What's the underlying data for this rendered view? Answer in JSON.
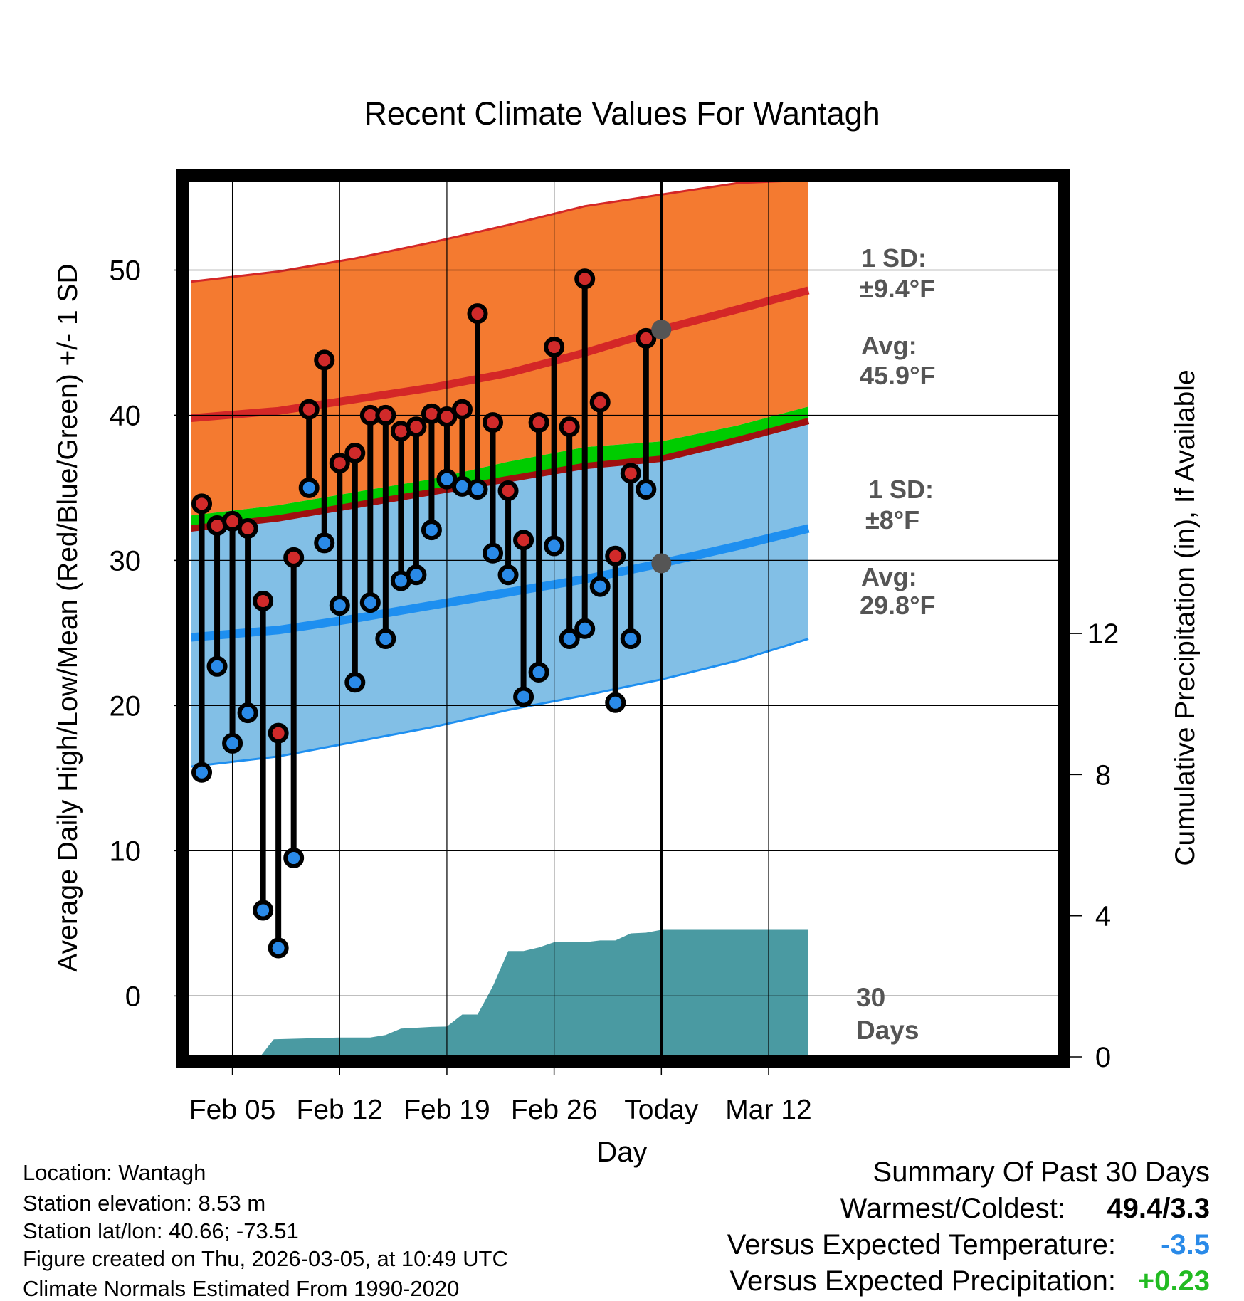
{
  "chart_data": {
    "type": "line",
    "title": "Recent Climate Values For Wantagh",
    "xlabel": "Day",
    "ylabel": "Average Daily High/Low/Mean (Red/Blue/Green) +/- 1 SD",
    "y2label": "Cumulative Precipitation (in), If Available",
    "x_range": [
      -3,
      54
    ],
    "ylim": [
      -4.2,
      56.2
    ],
    "y2lim": [
      0,
      24.85
    ],
    "y_ticks": [
      0,
      10,
      20,
      30,
      40,
      50
    ],
    "y2_ticks": [
      0,
      4,
      8,
      12
    ],
    "x_ticks": [
      {
        "day": 0,
        "label": "Feb 05"
      },
      {
        "day": 7,
        "label": "Feb 12"
      },
      {
        "day": 14,
        "label": "Feb 19"
      },
      {
        "day": 21,
        "label": "Feb 26"
      },
      {
        "day": 28,
        "label": "Today"
      },
      {
        "day": 35,
        "label": "Mar 12"
      }
    ],
    "today_day": 28,
    "today_label": "30 Days",
    "normals": {
      "days": [
        -2.7,
        3,
        8,
        13,
        18,
        23,
        28,
        33,
        37.6
      ],
      "high_plus_sd": [
        49.2,
        49.9,
        50.8,
        51.9,
        53.1,
        54.4,
        55.2,
        56.0,
        56.2
      ],
      "high_avg": [
        39.8,
        40.3,
        41.1,
        41.9,
        42.9,
        44.3,
        45.9,
        47.3,
        48.6
      ],
      "mean_upper": [
        33.1,
        33.8,
        34.7,
        35.6,
        36.8,
        37.8,
        38.2,
        39.3,
        40.6
      ],
      "mean_lower": [
        32.2,
        32.9,
        33.8,
        34.7,
        35.6,
        36.5,
        37.0,
        38.3,
        39.6
      ],
      "low_avg": [
        24.7,
        25.2,
        26.0,
        26.9,
        27.8,
        28.7,
        29.8,
        31.0,
        32.2
      ],
      "low_minus_sd": [
        15.8,
        16.5,
        17.5,
        18.5,
        19.7,
        20.7,
        21.8,
        23.1,
        24.6
      ]
    },
    "daily": {
      "days": [
        -2,
        -1,
        0,
        1,
        2,
        3,
        4,
        5,
        6,
        7,
        8,
        9,
        10,
        11,
        12,
        13,
        14,
        15,
        16,
        17,
        18,
        19,
        20,
        21,
        22,
        23,
        24,
        25,
        26,
        27
      ],
      "highs": [
        33.9,
        32.4,
        32.7,
        32.2,
        27.2,
        18.1,
        30.2,
        40.4,
        43.8,
        36.7,
        37.4,
        40.0,
        40.0,
        38.9,
        39.2,
        40.1,
        39.9,
        40.4,
        47.0,
        39.5,
        34.8,
        31.4,
        39.5,
        44.7,
        39.2,
        49.4,
        40.9,
        30.3,
        36.0,
        45.3
      ],
      "lows": [
        15.4,
        22.7,
        17.4,
        19.5,
        5.9,
        3.3,
        9.5,
        35.0,
        31.2,
        26.9,
        21.6,
        27.1,
        24.6,
        28.6,
        29.0,
        32.1,
        35.6,
        35.1,
        34.9,
        30.5,
        29.0,
        20.6,
        22.3,
        31.0,
        24.6,
        25.3,
        28.2,
        20.2,
        24.6,
        34.9
      ]
    },
    "precipitation": {
      "days": [
        -2.7,
        1.8,
        2.7,
        7,
        9,
        10,
        11,
        13,
        14,
        15,
        16,
        17,
        18,
        19,
        20,
        21,
        22,
        23,
        24,
        25,
        26,
        27,
        28,
        37.6
      ],
      "cumulative": [
        0,
        0,
        0.5,
        0.55,
        0.55,
        0.62,
        0.8,
        0.85,
        0.86,
        1.2,
        1.2,
        2.0,
        3.0,
        3.0,
        3.1,
        3.25,
        3.25,
        3.25,
        3.3,
        3.3,
        3.5,
        3.52,
        3.6,
        3.6
      ]
    },
    "annotations": {
      "high_sd_label": "1 SD:",
      "high_sd_value": "±9.4°F",
      "high_avg_label": "Avg:",
      "high_avg_value": "45.9°F",
      "high_avg_marker": 45.9,
      "low_sd_label": "1 SD:",
      "low_sd_value": "±8°F",
      "low_avg_label": "Avg:",
      "low_avg_value": "29.8°F",
      "low_avg_marker": 29.8
    },
    "colors": {
      "high_band": "#f47a30",
      "high_line": "#d42727",
      "low_band": "#82bfe6",
      "low_line": "#1e8ff0",
      "mean_band": "#00cc00",
      "mean_lower": "#a01010",
      "precip": "#4a9aa2",
      "high_marker": "#d02a2a",
      "low_marker": "#2a8ae8",
      "annotation": "#555555"
    }
  },
  "footer": {
    "location": "Location: Wantagh",
    "elevation": "Station elevation: 8.53 m",
    "latlon": "Station lat/lon: 40.66; -73.51",
    "created": "Figure created on Thu, 2026-03-05, at 10:49 UTC",
    "normals": "Climate Normals Estimated From 1990-2020"
  },
  "summary": {
    "title": "Summary Of Past 30 Days",
    "warm_cold_label": "Warmest/Coldest:",
    "warm_cold_value": "49.4/3.3",
    "temp_label": "Versus Expected Temperature:",
    "temp_value": "-3.5",
    "temp_color": "#2a8ae8",
    "precip_label": "Versus Expected Precipitation:",
    "precip_value": "+0.23",
    "precip_color": "#22bb22"
  }
}
